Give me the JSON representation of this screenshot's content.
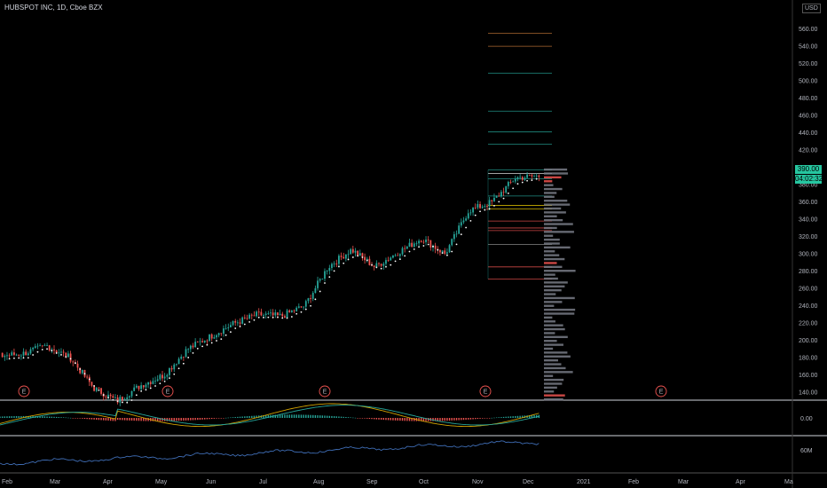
{
  "header": {
    "title": "HUBSPOT INC, 1D, Cboe BZX",
    "currency": "USD"
  },
  "price_tag": {
    "value": "390.00",
    "countdown": "04:02:32"
  },
  "price_axis_ticks": [
    "560.00",
    "540.00",
    "520.00",
    "500.00",
    "480.00",
    "460.00",
    "440.00",
    "420.00",
    "400.00",
    "380.00",
    "360.00",
    "340.00",
    "320.00",
    "300.00",
    "280.00",
    "260.00",
    "240.00",
    "220.00",
    "200.00",
    "180.00",
    "160.00",
    "140.00"
  ],
  "macd_axis": [
    "0.00"
  ],
  "volume_axis": [
    "60M"
  ],
  "x_axis_labels": [
    "Feb",
    "Mar",
    "Apr",
    "May",
    "Jun",
    "Jul",
    "Aug",
    "Sep",
    "Oct",
    "Nov",
    "Dec",
    "2021",
    "Feb",
    "Mar",
    "Apr",
    "Ma"
  ],
  "earnings_marker": "E",
  "colors": {
    "up": "#26a69a",
    "down": "#ef5350",
    "trail_dots": "#ffffff",
    "macd_line": "#d1a100",
    "signal_line": "#26a69a",
    "volume_line": "#3f6db5",
    "volume_profile": "#787b86",
    "volume_profile_poc": "#ef5350",
    "earnings": "#ef5350",
    "price_tag_bg": "#26c6a0"
  },
  "chart_data": {
    "type": "candlestick",
    "title": "HUBSPOT INC, 1D, Cboe BZX",
    "currency": "USD",
    "ylim": [
      130,
      575
    ],
    "x_labels": [
      "Feb",
      "Mar",
      "Apr",
      "May",
      "Jun",
      "Jul",
      "Aug",
      "Sep",
      "Oct",
      "Nov",
      "Dec",
      "2021",
      "Feb",
      "Mar",
      "Apr",
      "Ma"
    ],
    "close_path": [
      [
        "Feb",
        182
      ],
      [
        "Feb-mid",
        185
      ],
      [
        "Mar",
        194
      ],
      [
        "Mar-mid",
        180
      ],
      [
        "Mar-late",
        145
      ],
      [
        "Apr",
        130
      ],
      [
        "Apr-mid",
        148
      ],
      [
        "May",
        160
      ],
      [
        "May-mid",
        190
      ],
      [
        "Jun",
        205
      ],
      [
        "Jun-mid",
        220
      ],
      [
        "Jul",
        230
      ],
      [
        "Jul-mid",
        228
      ],
      [
        "Aug",
        240
      ],
      [
        "Aug-mid",
        285
      ],
      [
        "Sep",
        305
      ],
      [
        "Sep-mid",
        285
      ],
      [
        "Oct",
        302
      ],
      [
        "Oct-mid",
        318
      ],
      [
        "Nov-early",
        300
      ],
      [
        "Nov",
        350
      ],
      [
        "Nov-mid",
        360
      ],
      [
        "Dec",
        388
      ],
      [
        "Dec-mid",
        390
      ]
    ],
    "fib_levels": [
      555,
      540,
      509,
      465,
      441,
      427,
      397,
      393,
      387,
      367,
      356,
      352,
      338,
      330,
      327,
      311,
      285,
      271
    ],
    "trailing_stop_end": 385,
    "last_price": 390.0,
    "earnings_dates": [
      "Feb",
      "May",
      "Aug",
      "Nov",
      "Feb"
    ],
    "grid": false
  }
}
